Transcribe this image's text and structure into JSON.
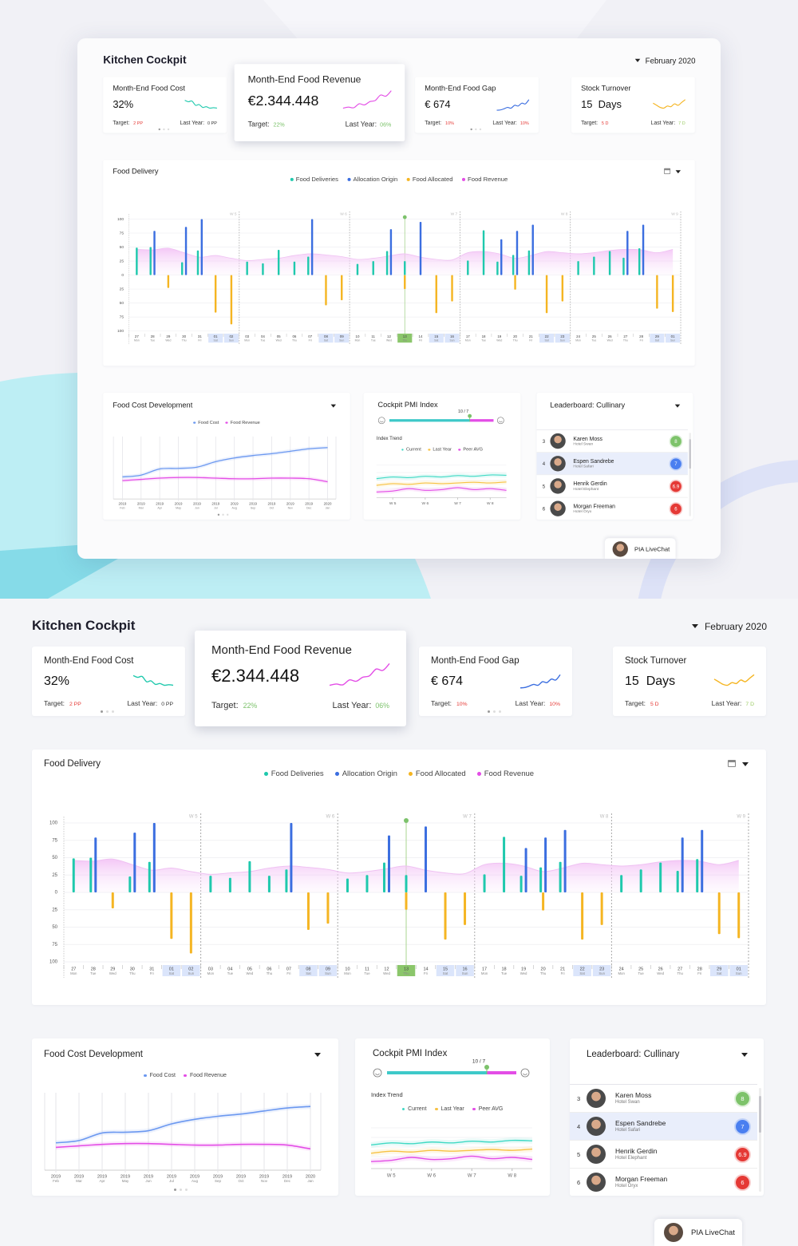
{
  "header": {
    "title": "Kitchen Cockpit",
    "date": "February 2020"
  },
  "kpis": [
    {
      "label": "Month-End Food Cost",
      "value": "32%",
      "target_label": "Target:",
      "target": "2 PP",
      "target_color": "#e53935",
      "last_year_label": "Last Year:",
      "last_year": "0 PP",
      "last_year_color": "#333333",
      "color": "#1fc9ad",
      "spark": [
        80,
        70,
        75,
        45,
        50,
        30,
        35,
        25,
        28,
        25
      ]
    },
    {
      "label": "Month-End Food Revenue",
      "value": "€2.344.448",
      "target_label": "Target:",
      "target": "22%",
      "target_color": "#7cc26b",
      "last_year_label": "Last Year:",
      "last_year": "06%",
      "last_year_color": "#7cc26b",
      "color": "#e34de6",
      "spark": [
        10,
        15,
        12,
        30,
        25,
        40,
        45,
        70,
        65,
        90
      ]
    },
    {
      "label": "Month-End Food Gap",
      "value": "€ 674",
      "target_label": "Target:",
      "target": "10%",
      "target_color": "#e53935",
      "last_year_label": "Last Year:",
      "last_year": "10%",
      "last_year_color": "#e53935",
      "color": "#3b6ee0",
      "spark": [
        10,
        12,
        20,
        30,
        25,
        45,
        40,
        60,
        55,
        85
      ]
    },
    {
      "label": "Stock Turnover",
      "value": "15  Days",
      "target_label": "Target:",
      "target": "5 D",
      "target_color": "#e53935",
      "last_year_label": "Last Year:",
      "last_year": "7 D",
      "last_year_color": "#9ccc65",
      "color": "#f5b522",
      "spark": [
        60,
        45,
        30,
        25,
        40,
        35,
        55,
        45,
        65,
        85
      ]
    }
  ],
  "chart_data": [
    {
      "type": "bar",
      "title": "Food Delivery",
      "categories": [
        "27",
        "28",
        "29",
        "30",
        "31",
        "01",
        "02",
        "03",
        "04",
        "05",
        "06",
        "07",
        "08",
        "09",
        "10",
        "11",
        "12",
        "13",
        "14",
        "15",
        "16",
        "17",
        "18",
        "19",
        "20",
        "21",
        "22",
        "23",
        "24",
        "25",
        "26",
        "27",
        "28",
        "29",
        "01"
      ],
      "weekdays": [
        "Mon",
        "Tue",
        "Wed",
        "Thu",
        "Fri",
        "Sat",
        "Sun",
        "Mon",
        "Tue",
        "Wed",
        "Thu",
        "Fri",
        "Sat",
        "Sun",
        "Mon",
        "Tue",
        "Wed",
        "Thu",
        "Fri",
        "Sat",
        "Sun",
        "Mon",
        "Tue",
        "Wed",
        "Thu",
        "Fri",
        "Sat",
        "Sun",
        "Mon",
        "Tue",
        "Wed",
        "Thu",
        "Fri",
        "Sat",
        "Sun"
      ],
      "weeks": [
        "W 5",
        "W 6",
        "W 7",
        "W 8",
        "W 9"
      ],
      "weekend_days": [
        5,
        6,
        12,
        13,
        19,
        20,
        26,
        27,
        33,
        34
      ],
      "selected_day": 17,
      "series": [
        {
          "name": "Food Deliveries",
          "color": "#1fc9ad",
          "values": [
            49,
            50,
            null,
            23,
            44,
            null,
            null,
            24,
            21,
            45,
            24,
            33,
            null,
            null,
            20,
            25,
            43,
            25,
            null,
            null,
            null,
            26,
            80,
            24,
            36,
            44,
            null,
            null,
            25,
            33,
            43,
            31,
            48,
            null,
            null
          ]
        },
        {
          "name": "Allocation Origin",
          "color": "#3b6ee0",
          "values": [
            null,
            79,
            null,
            86,
            100,
            null,
            null,
            null,
            null,
            null,
            null,
            100,
            null,
            null,
            null,
            null,
            82,
            null,
            95,
            null,
            null,
            null,
            null,
            64,
            79,
            90,
            null,
            null,
            null,
            null,
            null,
            79,
            90,
            null,
            null
          ]
        },
        {
          "name": "Food Allocated",
          "color": "#f5b522",
          "values": [
            null,
            null,
            -23,
            null,
            null,
            -67,
            -88,
            null,
            null,
            null,
            null,
            null,
            -54,
            -45,
            null,
            null,
            null,
            -25,
            null,
            -68,
            -47,
            null,
            null,
            null,
            -26,
            null,
            -68,
            -47,
            null,
            null,
            null,
            null,
            null,
            -60,
            -66
          ]
        },
        {
          "name": "Food Revenue",
          "color": "#e34de6",
          "type": "area",
          "values": [
            46,
            45,
            48,
            40,
            32,
            35,
            30,
            26,
            28,
            30,
            35,
            38,
            36,
            33,
            28,
            30,
            34,
            38,
            32,
            28,
            27,
            40,
            42,
            38,
            30,
            35,
            42,
            40,
            38,
            40,
            44,
            46,
            45,
            40,
            46
          ]
        }
      ],
      "ylim": [
        -100,
        100
      ],
      "yticks": [
        {
          "value": -100,
          "label": "100"
        },
        {
          "value": -75,
          "label": "75"
        },
        {
          "value": -50,
          "label": "50"
        },
        {
          "value": -25,
          "label": "25"
        },
        0,
        25,
        50,
        75,
        100
      ],
      "grid": true
    },
    {
      "type": "line",
      "title": "Food Cost Development",
      "categories": [
        "Feb",
        "Mar",
        "Apr",
        "May",
        "Jun",
        "Jul",
        "Aug",
        "Sep",
        "Oct",
        "Nov",
        "Dec",
        "Jan"
      ],
      "years": [
        "2019",
        "2019",
        "2019",
        "2019",
        "2019",
        "2019",
        "2019",
        "2019",
        "2019",
        "2019",
        "2019",
        "2020"
      ],
      "series": [
        {
          "name": "Food Cost",
          "color": "#6b98f0",
          "values": [
            35,
            38,
            48,
            49,
            51,
            60,
            66,
            70,
            73,
            77,
            81,
            83
          ]
        },
        {
          "name": "Food Revenue",
          "color": "#e34de6",
          "values": [
            29,
            31,
            33,
            34,
            34,
            33,
            32,
            32,
            33,
            33,
            32,
            27
          ]
        }
      ],
      "ylim": [
        0,
        100
      ]
    },
    {
      "type": "line",
      "title": "Cockpit PMI Index",
      "slider_label": "10 / 7",
      "subtitle": "Index Trend",
      "x": [
        4.5,
        5,
        5.5,
        6,
        6.5,
        7,
        7.5,
        8,
        8.5
      ],
      "series": [
        {
          "name": "Current",
          "color": "#3fd9c4",
          "values": [
            55,
            60,
            58,
            62,
            60,
            64,
            62,
            66,
            65
          ]
        },
        {
          "name": "Last Year",
          "color": "#f7c244",
          "values": [
            35,
            40,
            38,
            42,
            40,
            42,
            44,
            42,
            45
          ]
        },
        {
          "name": "Peer AVG",
          "color": "#e34de6",
          "values": [
            15,
            18,
            25,
            20,
            22,
            28,
            22,
            25,
            20
          ]
        }
      ],
      "xlim": [
        4.5,
        8.5
      ],
      "xticks": [
        {
          "value": 5,
          "label": "W 5"
        },
        {
          "value": 6,
          "label": "W 6"
        },
        {
          "value": 7,
          "label": "W 7"
        },
        {
          "value": 8,
          "label": "W 8"
        }
      ],
      "ylim": [
        0,
        100
      ]
    }
  ],
  "leaderboard": {
    "title": "Leaderboard: Cullinary",
    "selected_row": 1,
    "rows": [
      {
        "rank": "3",
        "name": "Karen Moss",
        "hotel": "Hotel Swan",
        "score": "8",
        "color": "#7dc36a"
      },
      {
        "rank": "4",
        "name": "Espen Sandrebe",
        "hotel": "Hotel Safari",
        "score": "7",
        "color": "#4a7ff0"
      },
      {
        "rank": "5",
        "name": "Henrik Gerdin",
        "hotel": "Hotel Elephant",
        "score": "6.9",
        "color": "#e53935"
      },
      {
        "rank": "6",
        "name": "Morgan Freeman",
        "hotel": "Hotel Oryx",
        "score": "6",
        "color": "#e53935"
      }
    ]
  },
  "live_chat": {
    "label": "PIA LiveChat"
  }
}
